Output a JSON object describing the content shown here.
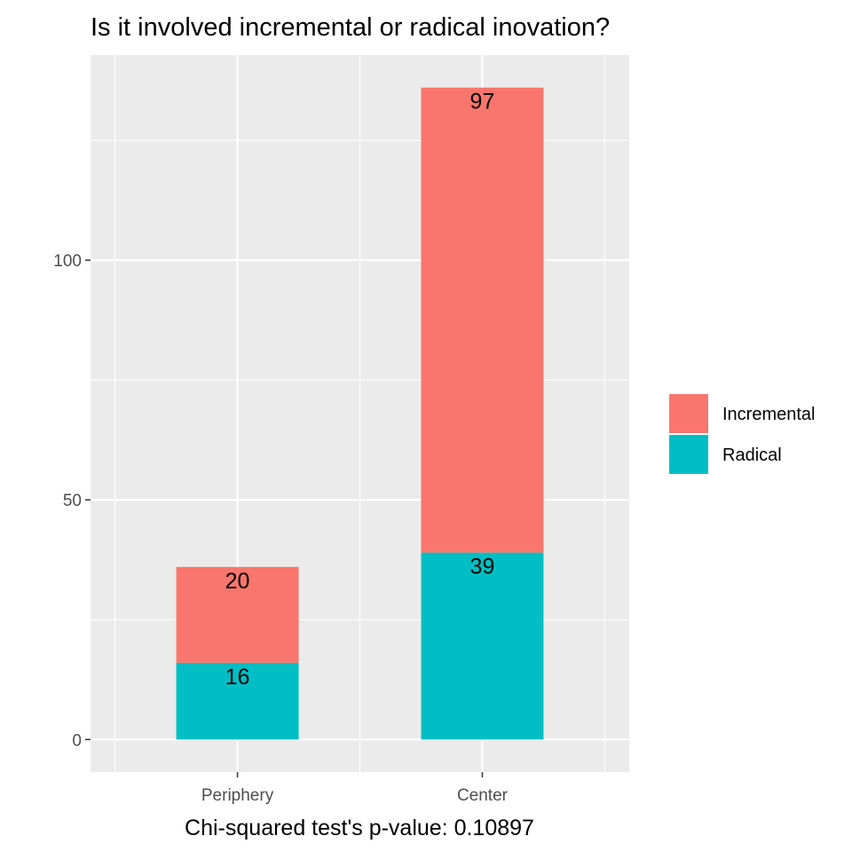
{
  "chart_data": {
    "type": "bar",
    "stacked": true,
    "title": "Is it involved incremental or radical inovation?",
    "xlabel": "Chi-squared test's p-value: 0.10897",
    "ylabel": "",
    "categories": [
      "Periphery",
      "Center"
    ],
    "series": [
      {
        "name": "Radical",
        "values": [
          16,
          39
        ],
        "color": "#00BFC4"
      },
      {
        "name": "Incremental",
        "values": [
          20,
          97
        ],
        "color": "#F8766D"
      }
    ],
    "legend_order": [
      "Incremental",
      "Radical"
    ],
    "legend_position": "right",
    "ylim": [
      -6.8,
      142.8
    ],
    "yticks": [
      0,
      50,
      100
    ],
    "grid": true,
    "panel_background": "#EBEBEB"
  }
}
